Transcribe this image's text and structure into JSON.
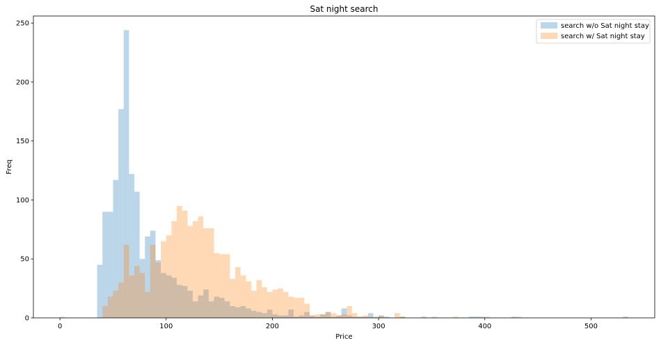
{
  "chart_data": {
    "type": "bar",
    "title": "Sat night search",
    "xlabel": "Price",
    "ylabel": "Freq",
    "xlim": [
      -25,
      560
    ],
    "ylim": [
      0,
      256
    ],
    "xticks": [
      0,
      100,
      200,
      300,
      400,
      500
    ],
    "yticks": [
      0,
      50,
      100,
      150,
      200,
      250
    ],
    "legend_position": "top-right",
    "bin_width": 5,
    "series": [
      {
        "name": "search w/o Sat night stay",
        "color": "#1f77b4",
        "opacity": 0.3,
        "bins": [
          [
            37.5,
            45
          ],
          [
            42.5,
            90
          ],
          [
            47.5,
            90
          ],
          [
            52.5,
            117
          ],
          [
            57.5,
            177
          ],
          [
            62.5,
            244
          ],
          [
            67.5,
            122
          ],
          [
            72.5,
            107
          ],
          [
            77.5,
            50
          ],
          [
            82.5,
            69
          ],
          [
            87.5,
            74
          ],
          [
            92.5,
            49
          ],
          [
            97.5,
            38
          ],
          [
            102.5,
            36
          ],
          [
            107.5,
            34
          ],
          [
            112.5,
            28
          ],
          [
            117.5,
            27
          ],
          [
            122.5,
            23
          ],
          [
            127.5,
            14
          ],
          [
            132.5,
            19
          ],
          [
            137.5,
            24
          ],
          [
            142.5,
            14
          ],
          [
            147.5,
            18
          ],
          [
            152.5,
            17
          ],
          [
            157.5,
            14
          ],
          [
            162.5,
            10
          ],
          [
            167.5,
            9
          ],
          [
            172.5,
            10
          ],
          [
            177.5,
            8
          ],
          [
            182.5,
            6
          ],
          [
            187.5,
            5
          ],
          [
            192.5,
            4
          ],
          [
            197.5,
            7
          ],
          [
            202.5,
            3
          ],
          [
            207.5,
            2
          ],
          [
            212.5,
            2
          ],
          [
            217.5,
            7
          ],
          [
            222.5,
            1
          ],
          [
            227.5,
            2
          ],
          [
            232.5,
            5
          ],
          [
            237.5,
            2
          ],
          [
            242.5,
            1
          ],
          [
            247.5,
            3
          ],
          [
            252.5,
            5
          ],
          [
            257.5,
            1
          ],
          [
            262.5,
            2
          ],
          [
            267.5,
            8
          ],
          [
            272.5,
            2
          ],
          [
            277.5,
            1
          ],
          [
            282.5,
            1
          ],
          [
            287.5,
            1
          ],
          [
            292.5,
            4
          ],
          [
            297.5,
            1
          ],
          [
            302.5,
            2
          ],
          [
            307.5,
            1
          ],
          [
            322.5,
            1
          ],
          [
            342.5,
            1
          ],
          [
            387.5,
            1
          ],
          [
            392.5,
            1
          ],
          [
            397.5,
            1
          ],
          [
            427.5,
            1
          ],
          [
            532.5,
            1
          ]
        ]
      },
      {
        "name": "search w/ Sat night stay",
        "color": "#ff7f0e",
        "opacity": 0.3,
        "bins": [
          [
            2.5,
            1
          ],
          [
            42.5,
            10
          ],
          [
            47.5,
            18
          ],
          [
            52.5,
            23
          ],
          [
            57.5,
            30
          ],
          [
            62.5,
            62
          ],
          [
            67.5,
            36
          ],
          [
            72.5,
            44
          ],
          [
            77.5,
            38
          ],
          [
            82.5,
            22
          ],
          [
            87.5,
            62
          ],
          [
            92.5,
            47
          ],
          [
            97.5,
            65
          ],
          [
            102.5,
            70
          ],
          [
            107.5,
            82
          ],
          [
            112.5,
            95
          ],
          [
            117.5,
            91
          ],
          [
            122.5,
            78
          ],
          [
            127.5,
            82
          ],
          [
            132.5,
            86
          ],
          [
            137.5,
            76
          ],
          [
            142.5,
            76
          ],
          [
            147.5,
            55
          ],
          [
            152.5,
            54
          ],
          [
            157.5,
            54
          ],
          [
            162.5,
            33
          ],
          [
            167.5,
            43
          ],
          [
            172.5,
            36
          ],
          [
            177.5,
            31
          ],
          [
            182.5,
            23
          ],
          [
            187.5,
            32
          ],
          [
            192.5,
            26
          ],
          [
            197.5,
            22
          ],
          [
            202.5,
            24
          ],
          [
            207.5,
            25
          ],
          [
            212.5,
            22
          ],
          [
            217.5,
            18
          ],
          [
            222.5,
            17
          ],
          [
            227.5,
            17
          ],
          [
            232.5,
            12
          ],
          [
            237.5,
            2
          ],
          [
            242.5,
            3
          ],
          [
            247.5,
            3
          ],
          [
            252.5,
            5
          ],
          [
            257.5,
            4
          ],
          [
            262.5,
            2
          ],
          [
            267.5,
            3
          ],
          [
            272.5,
            10
          ],
          [
            277.5,
            4
          ],
          [
            282.5,
            1
          ],
          [
            287.5,
            2
          ],
          [
            292.5,
            1
          ],
          [
            302.5,
            2
          ],
          [
            317.5,
            4
          ],
          [
            322.5,
            1
          ],
          [
            352.5,
            1
          ],
          [
            372.5,
            1
          ],
          [
            402.5,
            1
          ],
          [
            432.5,
            1
          ]
        ]
      }
    ]
  }
}
